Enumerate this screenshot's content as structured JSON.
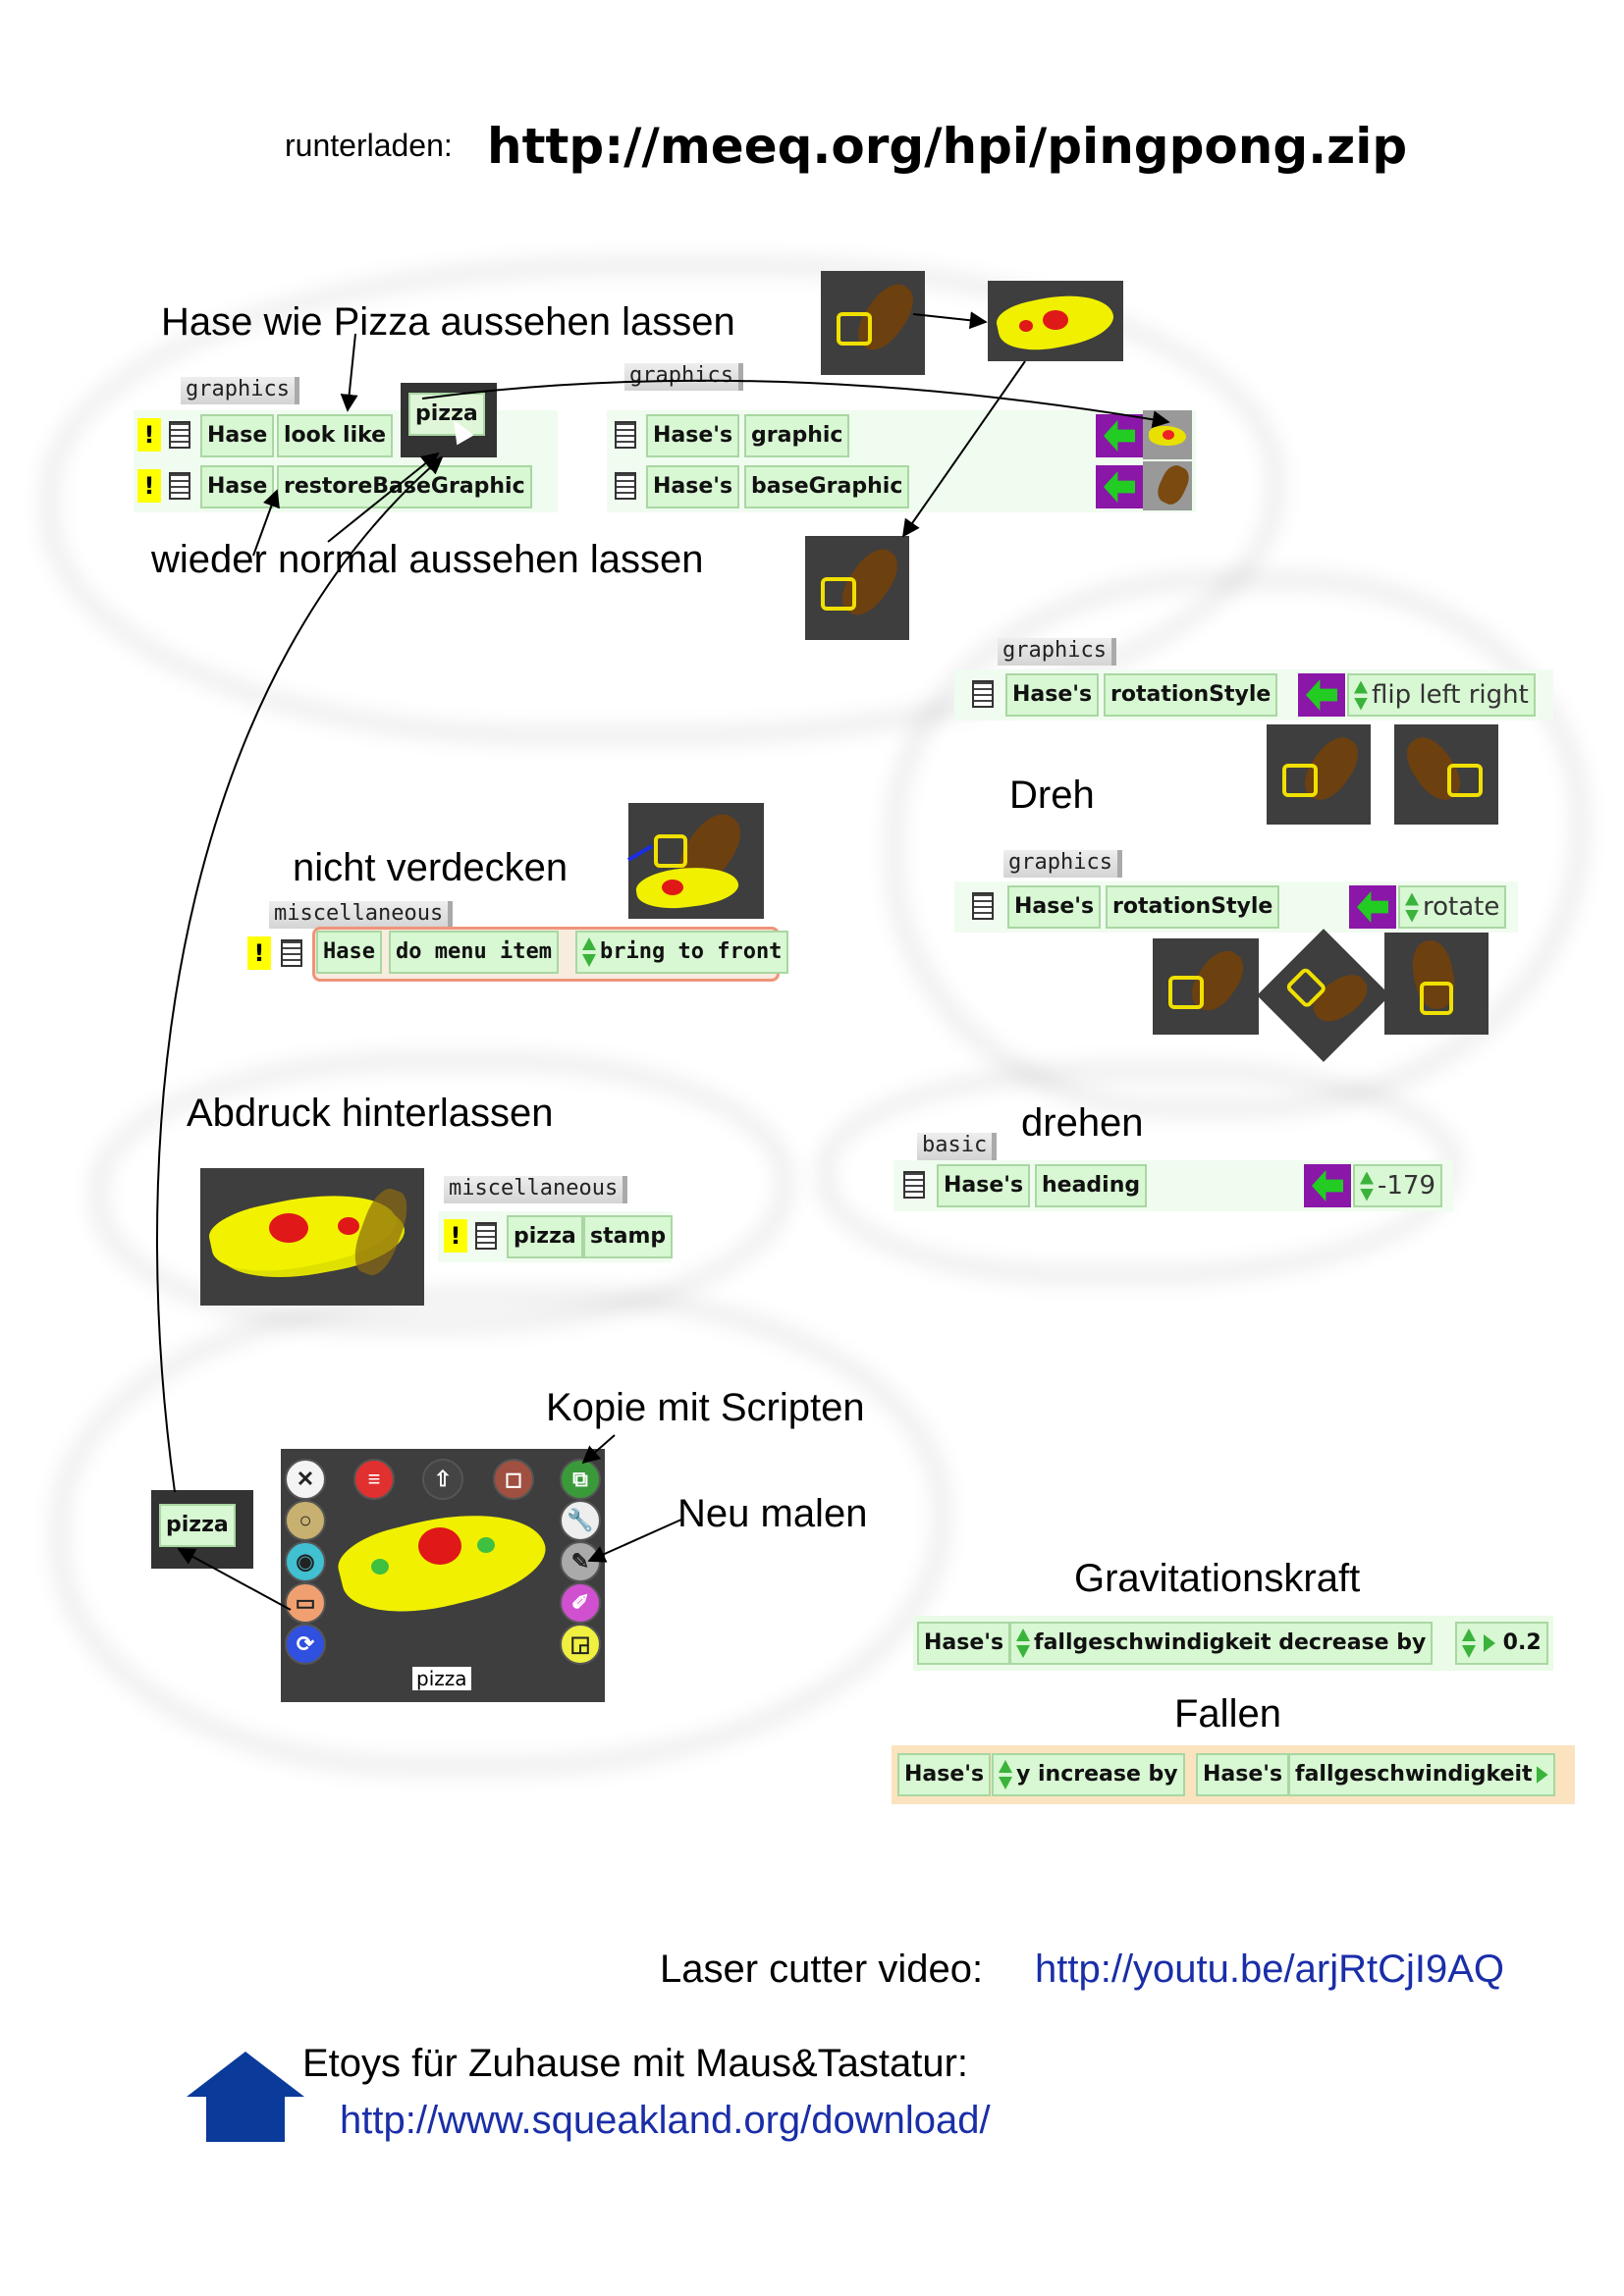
{
  "header": {
    "download_label": "runterladen:",
    "download_url": "http://meeq.org/hpi/pingpong.zip"
  },
  "section_look": {
    "title": "Hase wie Pizza aussehen lassen",
    "subtitle": "wieder normal aussehen lassen",
    "category_left": "graphics",
    "category_right": "graphics",
    "row1": {
      "object": "Hase",
      "command": "look like",
      "arg": "pizza"
    },
    "row2": {
      "object": "Hase",
      "command": "restoreBaseGraphic"
    },
    "row3": {
      "object": "Hase's",
      "property": "graphic"
    },
    "row4": {
      "object": "Hase's",
      "property": "baseGraphic"
    }
  },
  "section_rotation": {
    "title": "Dreh",
    "category_1": "graphics",
    "row1": {
      "object": "Hase's",
      "property": "rotationStyle",
      "value": "flip left right"
    },
    "category_2": "graphics",
    "row2": {
      "object": "Hase's",
      "property": "rotationStyle",
      "value": "rotate"
    }
  },
  "section_front": {
    "title": "nicht verdecken",
    "category": "miscellaneous",
    "row": {
      "object": "Hase",
      "command": "do menu item",
      "value": "bring to front"
    }
  },
  "section_heading": {
    "title": "drehen",
    "category": "basic",
    "row": {
      "object": "Hase's",
      "property": "heading",
      "value": "-179"
    }
  },
  "section_stamp": {
    "title": "Abdruck hinterlassen",
    "category": "miscellaneous",
    "row": {
      "object": "pizza",
      "command": "stamp"
    }
  },
  "section_halo": {
    "copy_label": "Kopie mit Scripten",
    "repaint_label": "Neu malen",
    "object_name": "pizza",
    "small_tile": "pizza"
  },
  "section_gravity": {
    "title": "Gravitationskraft",
    "row": {
      "object": "Hase's",
      "text": "fallgeschwindigkeit decrease by",
      "value": "0.2"
    }
  },
  "section_fall": {
    "title": "Fallen",
    "row": {
      "object": "Hase's",
      "text": "y increase by",
      "object2": "Hase's",
      "property": "fallgeschwindigkeit"
    }
  },
  "footer": {
    "video_label": "Laser cutter video:",
    "video_url": "http://youtu.be/arjRtCjI9AQ",
    "etoys_label": "Etoys für Zuhause mit Maus&Tastatur:",
    "etoys_url": "http://www.squeakland.org/download/"
  },
  "colors": {
    "tile_fill": "#d8f7d3",
    "assign_purple": "#8a17a8",
    "link_blue": "#1a2ea8",
    "home_icon": "#0a3a9a"
  }
}
